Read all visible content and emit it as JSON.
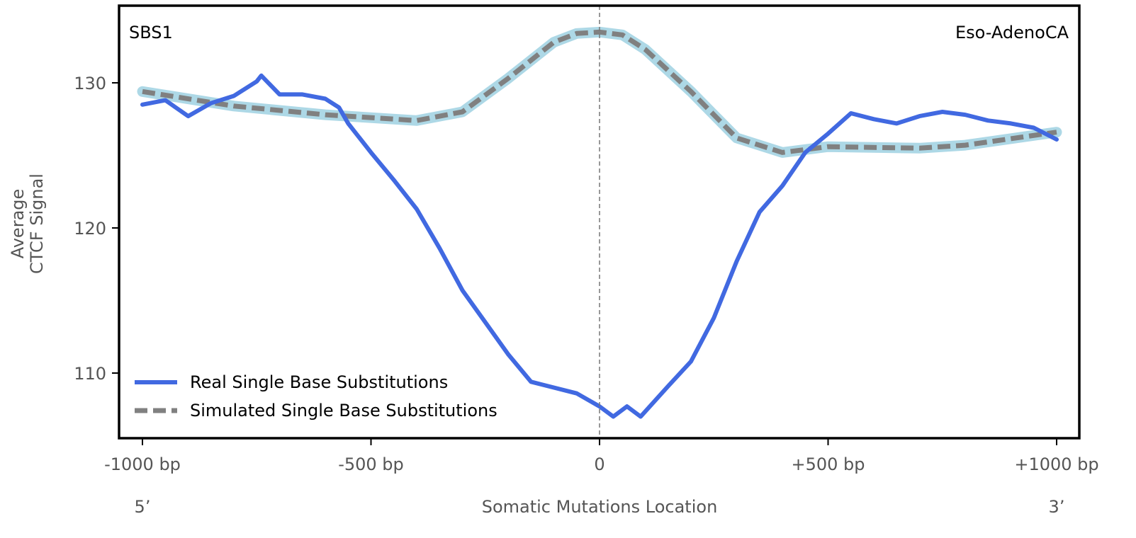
{
  "chart_data": {
    "type": "line",
    "signature_label": "SBS1",
    "cancer_type_label": "Eso-AdenoCA",
    "xlabel": "Somatic Mutations Location",
    "ylabel_line1": "Average",
    "ylabel_line2": "CTCF Signal",
    "x_end_labels": {
      "left": "5’",
      "right": "3’"
    },
    "xlim": [
      -1000,
      1000
    ],
    "ylim": [
      105.5,
      135.3
    ],
    "x_ticks": [
      {
        "value": -1000,
        "label": "-1000 bp"
      },
      {
        "value": -500,
        "label": "-500 bp"
      },
      {
        "value": 0,
        "label": "0"
      },
      {
        "value": 500,
        "label": "+500 bp"
      },
      {
        "value": 1000,
        "label": "+1000 bp"
      }
    ],
    "y_ticks": [
      {
        "value": 110,
        "label": "110"
      },
      {
        "value": 120,
        "label": "120"
      },
      {
        "value": 130,
        "label": "130"
      }
    ],
    "center_line": 0,
    "legend_position": "bottom-left",
    "series": [
      {
        "name": "Real Single Base Substitutions",
        "color": "#4169e1",
        "style": "solid",
        "x": [
          -1000,
          -950,
          -900,
          -850,
          -800,
          -750,
          -740,
          -700,
          -650,
          -600,
          -570,
          -550,
          -500,
          -450,
          -400,
          -350,
          -300,
          -250,
          -200,
          -150,
          -100,
          -50,
          0,
          30,
          60,
          90,
          150,
          200,
          250,
          300,
          350,
          400,
          450,
          500,
          550,
          600,
          650,
          700,
          750,
          800,
          850,
          900,
          950,
          1000
        ],
        "y": [
          128.5,
          128.8,
          127.7,
          128.6,
          129.1,
          130.1,
          130.5,
          129.2,
          129.2,
          128.9,
          128.3,
          127.2,
          125.2,
          123.3,
          121.3,
          118.6,
          115.7,
          113.5,
          111.3,
          109.4,
          109.0,
          108.6,
          107.7,
          107.0,
          107.7,
          107.0,
          109.1,
          110.8,
          113.8,
          117.7,
          121.1,
          122.9,
          125.2,
          126.5,
          127.9,
          127.5,
          127.2,
          127.7,
          128.0,
          127.8,
          127.4,
          127.2,
          126.9,
          126.1
        ]
      },
      {
        "name": "Simulated Single Base Substitutions",
        "color": "#808080",
        "band_color": "#add8e6",
        "style": "dashed",
        "x": [
          -1000,
          -800,
          -600,
          -400,
          -300,
          -200,
          -100,
          -50,
          0,
          50,
          100,
          200,
          300,
          400,
          500,
          700,
          800,
          1000
        ],
        "y": [
          129.4,
          128.4,
          127.8,
          127.4,
          128.0,
          130.3,
          132.8,
          133.4,
          133.5,
          133.3,
          132.3,
          129.4,
          126.2,
          125.2,
          125.6,
          125.5,
          125.7,
          126.6
        ]
      }
    ]
  }
}
